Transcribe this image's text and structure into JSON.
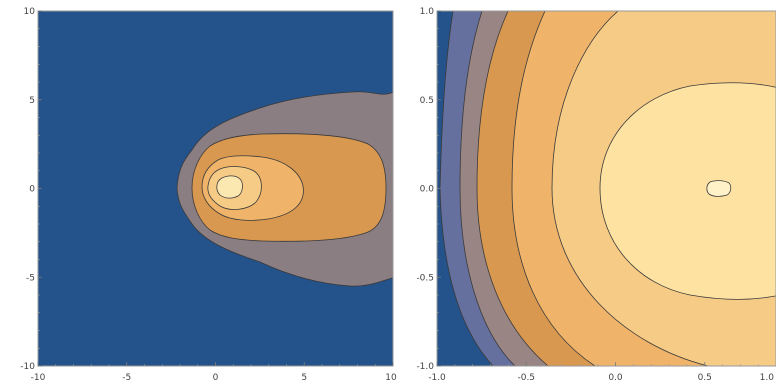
{
  "chart_data": [
    {
      "type": "contour",
      "title": "",
      "xlabel": "",
      "ylabel": "",
      "xlim": [
        -10,
        10
      ],
      "ylim": [
        -10,
        10
      ],
      "x_ticks": [
        "-10",
        "-5",
        "0",
        "5",
        "10"
      ],
      "y_ticks": [
        "-10",
        "-5",
        "0",
        "5",
        "10"
      ],
      "x_tick_values": [
        -10,
        -5,
        0,
        5,
        10
      ],
      "y_tick_values": [
        -10,
        -5,
        0,
        5,
        10
      ],
      "peak": {
        "x": 0.75,
        "y": 0.0
      },
      "levels": [
        {
          "color": "#24528a",
          "x_extent": [
            -10,
            10
          ],
          "y_extent": [
            -10,
            10
          ]
        },
        {
          "color": "#8b7e82",
          "x_extent": [
            -2.1,
            10
          ],
          "y_extent": [
            -5.6,
            5.3
          ]
        },
        {
          "color": "#d8984f",
          "x_extent": [
            -1.8,
            9.6
          ],
          "y_extent": [
            -3.1,
            3.1
          ]
        },
        {
          "color": "#efb469",
          "x_extent": [
            -0.9,
            5.1
          ],
          "y_extent": [
            -2.0,
            1.7
          ]
        },
        {
          "color": "#f6cb86",
          "x_extent": [
            -0.4,
            2.6
          ],
          "y_extent": [
            -1.3,
            1.1
          ]
        },
        {
          "color": "#fbe8b0",
          "x_extent": [
            0.0,
            1.5
          ],
          "y_extent": [
            -0.6,
            0.5
          ]
        }
      ]
    },
    {
      "type": "contour",
      "title": "",
      "xlabel": "",
      "ylabel": "",
      "xlim": [
        -1.0,
        1.0
      ],
      "ylim": [
        -1.0,
        1.0
      ],
      "x_ticks": [
        "-1.0",
        "-0.5",
        "0.0",
        "0.5",
        "1.0"
      ],
      "y_ticks": [
        "-1.0",
        "-0.5",
        "0.0",
        "0.5",
        "1.0"
      ],
      "x_tick_values": [
        -1.0,
        -0.5,
        0.0,
        0.5,
        1.0
      ],
      "y_tick_values": [
        -1.0,
        -0.5,
        0.0,
        0.5,
        1.0
      ],
      "peak": {
        "x": 0.7,
        "y": 0.0
      },
      "levels": [
        {
          "color": "#24528a"
        },
        {
          "color": "#65709e"
        },
        {
          "color": "#998684"
        },
        {
          "color": "#d8984f"
        },
        {
          "color": "#efb469"
        },
        {
          "color": "#f6cb86"
        },
        {
          "color": "#fde2a2"
        },
        {
          "color": "#fff1c8"
        }
      ]
    }
  ]
}
